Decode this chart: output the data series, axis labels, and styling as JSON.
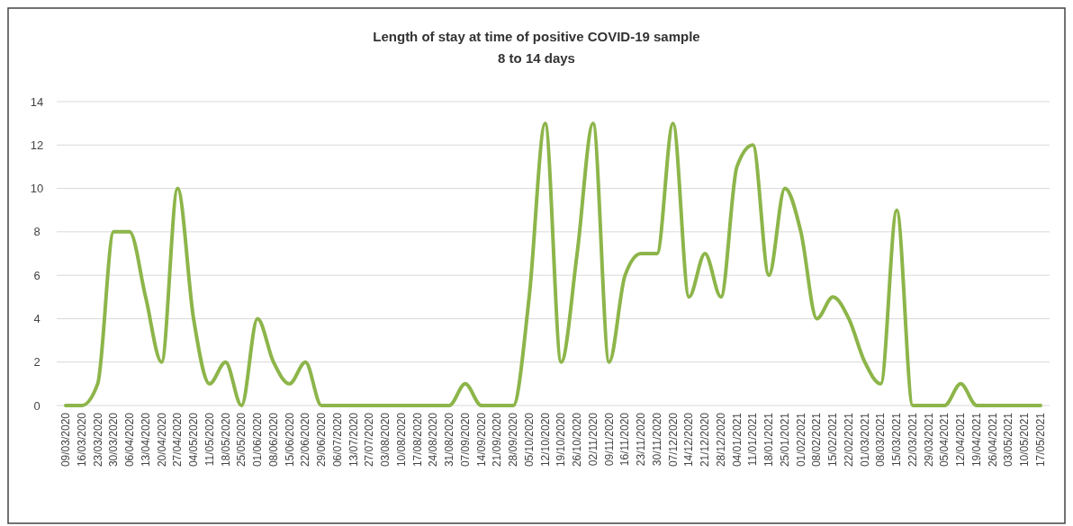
{
  "chart_data": {
    "type": "line",
    "title": "Length of stay at time of positive COVID-19 sample",
    "subtitle": "8 to 14 days",
    "categories": [
      "09/03/2020",
      "16/03/2020",
      "23/03/2020",
      "30/03/2020",
      "06/04/2020",
      "13/04/2020",
      "20/04/2020",
      "27/04/2020",
      "04/05/2020",
      "11/05/2020",
      "18/05/2020",
      "25/05/2020",
      "01/06/2020",
      "08/06/2020",
      "15/06/2020",
      "22/06/2020",
      "29/06/2020",
      "06/07/2020",
      "13/07/2020",
      "27/07/2020",
      "03/08/2020",
      "10/08/2020",
      "17/08/2020",
      "24/08/2020",
      "31/08/2020",
      "07/09/2020",
      "14/09/2020",
      "21/09/2020",
      "28/09/2020",
      "05/10/2020",
      "12/10/2020",
      "19/10/2020",
      "26/10/2020",
      "02/11/2020",
      "09/11/2020",
      "16/11/2020",
      "23/11/2020",
      "30/11/2020",
      "07/12/2020",
      "14/12/2020",
      "21/12/2020",
      "28/12/2020",
      "04/01/2021",
      "11/01/2021",
      "18/01/2021",
      "25/01/2021",
      "01/02/2021",
      "08/02/2021",
      "15/02/2021",
      "22/02/2021",
      "01/03/2021",
      "08/03/2021",
      "15/03/2021",
      "22/03/2021",
      "29/03/2021",
      "05/04/2021",
      "12/04/2021",
      "19/04/2021",
      "26/04/2021",
      "03/05/2021",
      "10/05/2021",
      "17/05/2021"
    ],
    "series": [
      {
        "color": "#8db54a",
        "values": [
          0,
          0,
          1,
          8,
          8,
          5,
          2,
          10,
          4,
          1,
          2,
          0,
          4,
          2,
          1,
          2,
          0,
          0,
          0,
          0,
          0,
          0,
          0,
          0,
          0,
          1,
          0,
          0,
          0,
          5,
          13,
          2,
          7,
          13,
          2,
          6,
          7,
          7,
          13,
          5,
          7,
          5,
          11,
          12,
          6,
          10,
          8,
          4,
          5,
          4,
          2,
          1,
          9,
          0,
          0,
          0,
          1,
          0,
          0,
          0,
          0,
          0
        ]
      }
    ],
    "ylim": [
      0,
      14
    ],
    "yticks": [
      0,
      2,
      4,
      6,
      8,
      10,
      12,
      14
    ],
    "grid": "y",
    "marker": "none",
    "line_style": "solid"
  }
}
